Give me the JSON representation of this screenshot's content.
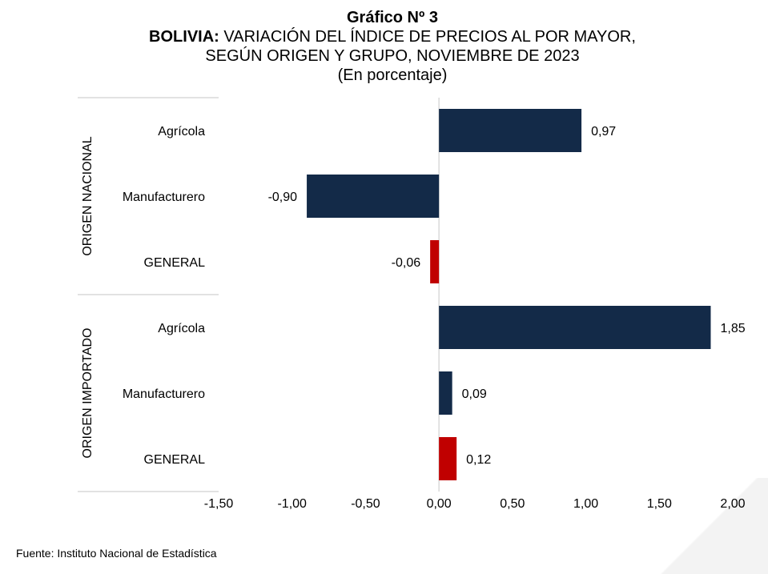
{
  "title": {
    "line1": "Gráfico Nº 3",
    "line2_bold": "BOLIVIA:",
    "line2_rest": " VARIACIÓN DEL ÍNDICE DE PRECIOS AL POR MAYOR,",
    "line3": "SEGÚN ORIGEN Y GRUPO, NOVIEMBRE DE 2023",
    "line4": "(En porcentaje)"
  },
  "source": "Fuente: Instituto Nacional de Estadística",
  "chart_data": {
    "type": "bar",
    "orientation": "horizontal",
    "xlim": [
      -1.5,
      2.0
    ],
    "x_ticks": [
      -1.5,
      -1.0,
      -0.5,
      0.0,
      0.5,
      1.0,
      1.5,
      2.0
    ],
    "x_tick_labels": [
      "-1,50",
      "-1,00",
      "-0,50",
      "0,00",
      "0,50",
      "1,00",
      "1,50",
      "2,00"
    ],
    "groups": [
      {
        "name": "ORIGEN NACIONAL",
        "items": [
          {
            "category": "Agrícola",
            "value": 0.97,
            "label": "0,97",
            "color": "#132a48"
          },
          {
            "category": "Manufacturero",
            "value": -0.9,
            "label": "-0,90",
            "color": "#132a48"
          },
          {
            "category": "GENERAL",
            "value": -0.06,
            "label": "-0,06",
            "color": "#c00000"
          }
        ]
      },
      {
        "name": "ORIGEN IMPORTADO",
        "items": [
          {
            "category": "Agrícola",
            "value": 1.85,
            "label": "1,85",
            "color": "#132a48"
          },
          {
            "category": "Manufacturero",
            "value": 0.09,
            "label": "0,09",
            "color": "#132a48"
          },
          {
            "category": "GENERAL",
            "value": 0.12,
            "label": "0,12",
            "color": "#c00000"
          }
        ]
      }
    ],
    "grid": false,
    "legend": "none"
  }
}
